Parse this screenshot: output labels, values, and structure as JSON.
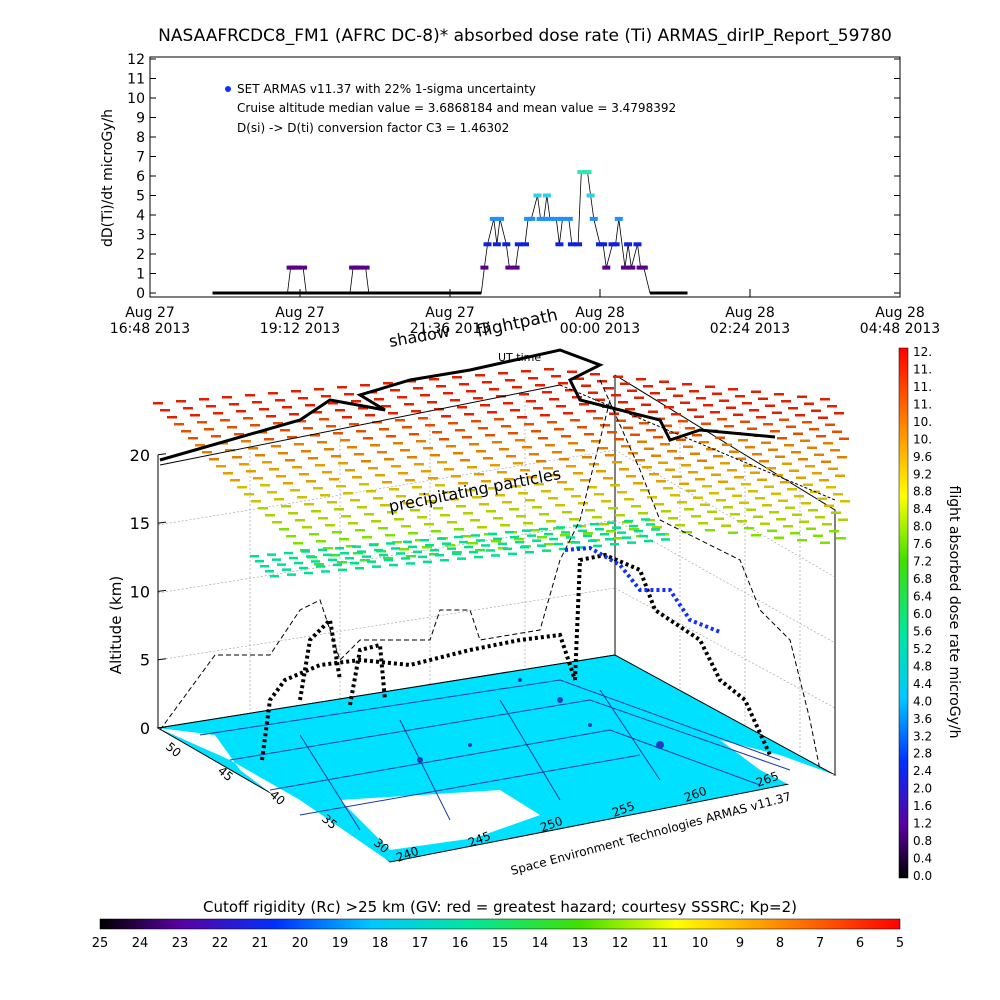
{
  "title": "NASAAFRCDC8_FM1 (AFRC DC-8)* absorbed dose rate (Ti) ARMAS_dirIP_Report_59780",
  "chart_data": [
    {
      "type": "line",
      "ylabel": "dD(Ti)/dt microGy/h",
      "ylim": [
        0,
        12
      ],
      "yticks": [
        0,
        1,
        2,
        3,
        4,
        5,
        6,
        7,
        8,
        9,
        10,
        11,
        12
      ],
      "xticks": [
        {
          "line1": "Aug 27",
          "line2": "16:48 2013"
        },
        {
          "line1": "Aug 27",
          "line2": "19:12 2013"
        },
        {
          "line1": "Aug 27",
          "line2": "21:36 2013"
        },
        {
          "line1": "Aug 28",
          "line2": "00:00 2013"
        },
        {
          "line1": "Aug 28",
          "line2": "02:24 2013"
        },
        {
          "line1": "Aug 28",
          "line2": "04:48 2013"
        }
      ],
      "annotations": [
        "SET ARMAS v11.37 with 22% 1-sigma uncertainty",
        "Cruise altitude median value = 3.6868184 and mean value = 3.4798392",
        "D(si) -> D(ti) conversion factor C3 = 1.46302"
      ],
      "series": [
        {
          "x_hours_from_1648": [
            1.0,
            2.2,
            2.25,
            2.3,
            2.35,
            2.45,
            2.5,
            3.2,
            3.25,
            3.3,
            3.35,
            3.45,
            3.5,
            5.3,
            5.35,
            5.4,
            5.5,
            5.55,
            5.6,
            5.7,
            5.75,
            5.85,
            5.9,
            6.0,
            6.05,
            6.1,
            6.2,
            6.25,
            6.3,
            6.35,
            6.4,
            6.5,
            6.55,
            6.6,
            6.7,
            6.75,
            6.85,
            6.9,
            6.95,
            7.0,
            7.05,
            7.1,
            7.2,
            7.25,
            7.3,
            7.4,
            7.45,
            7.5,
            7.6,
            7.65,
            7.7,
            7.8,
            7.85,
            7.9,
            8.0,
            8.1
          ],
          "y": [
            0,
            0,
            1.3,
            1.3,
            1.3,
            1.3,
            0,
            0,
            1.3,
            1.3,
            1.3,
            1.3,
            0,
            0,
            1.3,
            2.5,
            3.8,
            2.5,
            3.8,
            2.5,
            1.3,
            1.3,
            2.5,
            2.5,
            3.8,
            3.8,
            5.0,
            3.8,
            3.8,
            5.0,
            3.8,
            3.8,
            2.5,
            3.8,
            3.8,
            2.5,
            2.5,
            6.2,
            6.2,
            6.2,
            5.0,
            3.8,
            2.5,
            2.5,
            1.3,
            2.5,
            2.5,
            3.8,
            1.3,
            2.5,
            1.3,
            2.5,
            1.3,
            1.3,
            0,
            0
          ]
        }
      ]
    },
    {
      "type": "scatter",
      "ylabel": "Altitude (km)",
      "zticks": [
        0,
        5,
        10,
        15,
        20
      ],
      "lat_ticks": [
        50,
        45,
        40,
        35,
        30
      ],
      "lon_ticks": [
        240,
        245,
        250,
        255,
        260,
        265
      ],
      "labels": [
        "shadow",
        "flightpath",
        "UT time",
        "precipitating particles"
      ],
      "credit": "Space Environment Technologies ARMAS v11.37"
    }
  ],
  "colorbar_right": {
    "label": "flight absorbed dose rate microGy/h",
    "ticks": [
      "0.0",
      "0.4",
      "0.8",
      "1.2",
      "1.6",
      "2.0",
      "2.4",
      "2.8",
      "3.2",
      "3.6",
      "4.0",
      "4.4",
      "4.8",
      "5.2",
      "5.6",
      "6.0",
      "6.4",
      "6.8",
      "7.2",
      "7.6",
      "8.0",
      "8.4",
      "8.8",
      "9.2",
      "9.6",
      "10.",
      "10.",
      "11.",
      "11.",
      "11.",
      "12."
    ]
  },
  "colorbar_bottom": {
    "label": "Cutoff rigidity (Rc) >25 km (GV: red = greatest hazard; courtesy SSSRC; Kp=2)",
    "ticks": [
      "25",
      "24",
      "23",
      "22",
      "21",
      "20",
      "19",
      "18",
      "17",
      "16",
      "15",
      "14",
      "13",
      "12",
      "11",
      "10",
      "9",
      "8",
      "7",
      "6",
      "5"
    ]
  },
  "colors": {
    "map_fill": "#00e0ff",
    "path": "#000000"
  }
}
